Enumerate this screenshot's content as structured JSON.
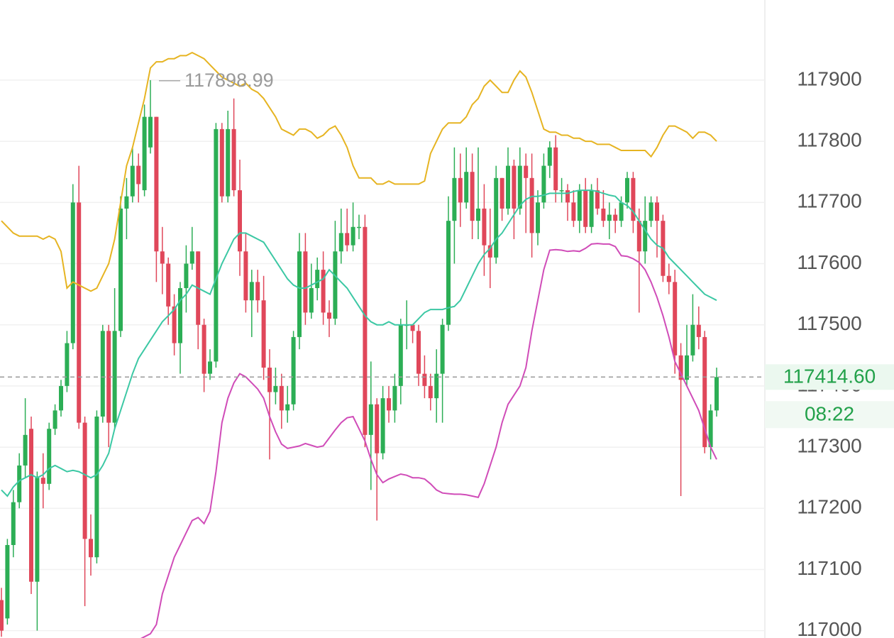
{
  "chart_data": {
    "type": "candlestick",
    "ylim": [
      116988,
      118031
    ],
    "yticks": [
      117000,
      117100,
      117200,
      117300,
      117400,
      117500,
      117600,
      117700,
      117800,
      117900
    ],
    "grid": true,
    "up_color": "#2cae55",
    "down_color": "#e0475a",
    "open": [
      117050,
      117020,
      117140,
      117210,
      117270,
      117330,
      117080,
      117250,
      117240,
      117330,
      117360,
      117400,
      117470,
      117700,
      117340,
      117150,
      117120,
      117350,
      117490,
      117340,
      117490,
      117690,
      117710,
      117760,
      117720,
      117790,
      117840,
      117620,
      117600,
      117530,
      117470,
      117560,
      117600,
      117620,
      117500,
      117420,
      117440,
      117820,
      117710,
      117820,
      117720,
      117620,
      117540,
      117570,
      117540,
      117430,
      117390,
      117400,
      117360,
      117370,
      117480,
      117620,
      117520,
      117560,
      117590,
      117520,
      117510,
      117620,
      117650,
      117630,
      117660,
      117660,
      117320,
      117370,
      117290,
      117380,
      117360,
      117400,
      117500,
      117500,
      117490,
      117420,
      117400,
      117380,
      117420,
      117500,
      117670,
      117740,
      117700,
      117750,
      117670,
      117690,
      117630,
      117610,
      117740,
      117690,
      117760,
      117690,
      117760,
      117740,
      117650,
      117700,
      117760,
      117790,
      117720,
      117720,
      117700,
      117670,
      117720,
      117660,
      117720,
      117690,
      117670,
      117680,
      117670,
      117700,
      117740,
      117670,
      117620,
      117670,
      117700,
      117670,
      117580,
      117570,
      117450,
      117410,
      117450,
      117500,
      117480,
      117300,
      117360
    ],
    "high": [
      117070,
      117150,
      117230,
      117290,
      117380,
      117350,
      117260,
      117290,
      117340,
      117370,
      117410,
      117490,
      117730,
      117760,
      117350,
      117190,
      117360,
      117500,
      117500,
      117560,
      117710,
      117740,
      117790,
      117780,
      117860,
      117900,
      117840,
      117660,
      117610,
      117550,
      117570,
      117630,
      117660,
      117620,
      117510,
      117460,
      117830,
      117830,
      117850,
      117870,
      117770,
      117650,
      117590,
      117590,
      117580,
      117460,
      117430,
      117420,
      117400,
      117490,
      117650,
      117650,
      117600,
      117610,
      117620,
      117540,
      117670,
      117690,
      117690,
      117700,
      117680,
      117680,
      117440,
      117380,
      117400,
      117400,
      117420,
      117510,
      117540,
      117500,
      117500,
      117450,
      117420,
      117460,
      117510,
      117710,
      117790,
      117780,
      117790,
      117780,
      117790,
      117730,
      117690,
      117760,
      117740,
      117790,
      117770,
      117790,
      117780,
      117780,
      117720,
      117780,
      117800,
      117810,
      117740,
      117730,
      117720,
      117730,
      117740,
      117730,
      117740,
      117720,
      117700,
      117690,
      117710,
      117750,
      117750,
      117690,
      117710,
      117710,
      117710,
      117680,
      117600,
      117590,
      117470,
      117500,
      117550,
      117530,
      117490,
      117370,
      117430
    ],
    "low": [
      116990,
      117010,
      117120,
      117200,
      117250,
      117060,
      117000,
      117200,
      117230,
      117320,
      117350,
      117390,
      117460,
      117330,
      117040,
      117090,
      117110,
      117340,
      117300,
      117330,
      117480,
      117640,
      117700,
      117700,
      117710,
      117780,
      117570,
      117550,
      117500,
      117450,
      117420,
      117520,
      117590,
      117460,
      117390,
      117410,
      117430,
      117700,
      117700,
      117710,
      117580,
      117520,
      117480,
      117520,
      117410,
      117280,
      117370,
      117330,
      117340,
      117360,
      117460,
      117500,
      117510,
      117540,
      117500,
      117480,
      117500,
      117600,
      117620,
      117620,
      117640,
      117300,
      117230,
      117180,
      117280,
      117340,
      117340,
      117370,
      117460,
      117470,
      117400,
      117380,
      117360,
      117340,
      117340,
      117490,
      117600,
      117660,
      117690,
      117640,
      117640,
      117580,
      117560,
      117600,
      117670,
      117680,
      117640,
      117680,
      117650,
      117610,
      117630,
      117690,
      117740,
      117700,
      117700,
      117670,
      117660,
      117650,
      117650,
      117650,
      117680,
      117660,
      117640,
      117650,
      117660,
      117690,
      117650,
      117520,
      117600,
      117660,
      117610,
      117570,
      117550,
      117420,
      117220,
      117400,
      117440,
      117460,
      117290,
      117280,
      117350
    ],
    "close": [
      117000,
      117140,
      117210,
      117270,
      117320,
      117080,
      117250,
      117240,
      117330,
      117360,
      117400,
      117470,
      117700,
      117340,
      117150,
      117120,
      117350,
      117490,
      117340,
      117490,
      117690,
      117710,
      117760,
      117730,
      117840,
      117840,
      117620,
      117600,
      117530,
      117470,
      117560,
      117600,
      117620,
      117500,
      117420,
      117440,
      117820,
      117710,
      117820,
      117720,
      117620,
      117540,
      117570,
      117540,
      117430,
      117390,
      117400,
      117360,
      117370,
      117480,
      117620,
      117520,
      117560,
      117590,
      117520,
      117510,
      117620,
      117650,
      117630,
      117660,
      117660,
      117320,
      117370,
      117290,
      117380,
      117360,
      117400,
      117500,
      117500,
      117490,
      117420,
      117400,
      117380,
      117420,
      117500,
      117670,
      117740,
      117700,
      117750,
      117670,
      117690,
      117630,
      117610,
      117740,
      117690,
      117760,
      117690,
      117760,
      117740,
      117650,
      117700,
      117760,
      117790,
      117720,
      117720,
      117700,
      117670,
      117720,
      117660,
      117720,
      117690,
      117670,
      117680,
      117670,
      117700,
      117740,
      117670,
      117620,
      117670,
      117700,
      117670,
      117580,
      117570,
      117450,
      117410,
      117450,
      117500,
      117480,
      117300,
      117360,
      117414.6
    ],
    "overlays": [
      {
        "color": "#e6b422",
        "values": [
          117670,
          117660,
          117650,
          117645,
          117645,
          117645,
          117645,
          117640,
          117645,
          117640,
          117620,
          117560,
          117570,
          117565,
          117560,
          117555,
          117560,
          117580,
          117600,
          117640,
          117700,
          117760,
          117790,
          117830,
          117870,
          117920,
          117930,
          117930,
          117935,
          117935,
          117940,
          117940,
          117945,
          117940,
          117935,
          117925,
          117915,
          117905,
          117900,
          117895,
          117890,
          117895,
          117885,
          117880,
          117870,
          117855,
          117840,
          117820,
          117815,
          117810,
          117820,
          117820,
          117815,
          117805,
          117810,
          117820,
          117825,
          117810,
          117790,
          117760,
          117740,
          117740,
          117740,
          117730,
          117730,
          117735,
          117730,
          117730,
          117730,
          117730,
          117730,
          117735,
          117780,
          117800,
          117820,
          117830,
          117830,
          117830,
          117840,
          117860,
          117870,
          117890,
          117900,
          117890,
          117880,
          117880,
          117900,
          117915,
          117905,
          117880,
          117850,
          117820,
          117815,
          117815,
          117810,
          117810,
          117805,
          117805,
          117800,
          117800,
          117795,
          117795,
          117795,
          117790,
          117785,
          117785,
          117785,
          117785,
          117785,
          117775,
          117790,
          117810,
          117825,
          117825,
          117820,
          117815,
          117805,
          117815,
          117815,
          117810,
          117800
        ]
      },
      {
        "color": "#3cc8a4",
        "values": [
          117230,
          117220,
          117235,
          117245,
          117250,
          117255,
          117250,
          117255,
          117265,
          117270,
          117265,
          117260,
          117262,
          117260,
          117255,
          117250,
          117255,
          117270,
          117290,
          117330,
          117360,
          117390,
          117420,
          117445,
          117460,
          117475,
          117490,
          117505,
          117515,
          117525,
          117540,
          117550,
          117565,
          117560,
          117555,
          117550,
          117575,
          117600,
          117620,
          117640,
          117650,
          117650,
          117645,
          117640,
          117635,
          117620,
          117605,
          117590,
          117575,
          117565,
          117560,
          117560,
          117565,
          117570,
          117575,
          117590,
          117580,
          117570,
          117560,
          117545,
          117530,
          117515,
          117505,
          117500,
          117500,
          117505,
          117500,
          117500,
          117500,
          117500,
          117510,
          117520,
          117525,
          117525,
          117525,
          117528,
          117530,
          117540,
          117560,
          117580,
          117600,
          117615,
          117625,
          117640,
          117650,
          117665,
          117680,
          117695,
          117705,
          117710,
          117710,
          117712,
          117715,
          117715,
          117715,
          117715,
          117718,
          117720,
          117720,
          117720,
          117718,
          117715,
          117712,
          117710,
          117700,
          117695,
          117685,
          117670,
          117655,
          117640,
          117630,
          117625,
          117610,
          117600,
          117590,
          117580,
          117570,
          117560,
          117550,
          117545,
          117540
        ]
      },
      {
        "color": "#d04cb8",
        "values": [
          null,
          null,
          null,
          null,
          null,
          null,
          null,
          null,
          null,
          null,
          null,
          null,
          null,
          null,
          null,
          null,
          null,
          null,
          null,
          null,
          null,
          null,
          null,
          116985,
          116990,
          116995,
          117010,
          117060,
          117090,
          117120,
          117140,
          117160,
          117180,
          117185,
          117175,
          117195,
          117260,
          117340,
          117380,
          117405,
          117420,
          117415,
          117405,
          117395,
          117380,
          117350,
          117325,
          117305,
          117298,
          117300,
          117302,
          117306,
          117303,
          117300,
          117302,
          117315,
          117328,
          117340,
          117348,
          117350,
          117330,
          117310,
          117280,
          117255,
          117242,
          117248,
          117252,
          117256,
          117254,
          117250,
          117250,
          117248,
          117240,
          117230,
          117225,
          117224,
          117223,
          117223,
          117222,
          117220,
          117218,
          117240,
          117270,
          117300,
          117340,
          117370,
          117385,
          117400,
          117430,
          117490,
          117540,
          117590,
          117622,
          117623,
          117622,
          117620,
          117621,
          117620,
          117625,
          117632,
          117633,
          117632,
          117632,
          117628,
          117613,
          117612,
          117608,
          117602,
          117590,
          117570,
          117545,
          117515,
          117480,
          117440,
          117420,
          117400,
          117380,
          117360,
          117330,
          117300,
          117280
        ]
      }
    ],
    "high_label": {
      "value": 117898.99,
      "label": "117898.99"
    },
    "last_price": {
      "value": 117414.6,
      "label": "117414.60"
    },
    "countdown": "08:22"
  }
}
